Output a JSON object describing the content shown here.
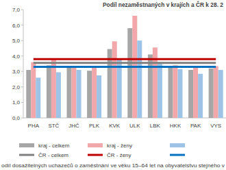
{
  "chart_data": {
    "type": "bar",
    "title": "Podíl nezaměstnaných v krajích a ČR k 28. 2",
    "note": "odíl dosažitelných uchazečů o zaměstnání ve věku 15–64 let na obyvatelstvu stejného v",
    "categories": [
      "PHA",
      "STČ",
      "JHČ",
      "PLK",
      "KVK",
      "ULK",
      "LBK",
      "HKK",
      "PAK",
      "VYS"
    ],
    "series": [
      {
        "name": "kraj - celkem",
        "color": "#a6a6a6",
        "values": [
          3.1,
          3.4,
          3.25,
          3.05,
          4.45,
          5.8,
          4.1,
          3.3,
          3.1,
          3.2
        ]
      },
      {
        "name": "kraj - ženy",
        "color": "#f2a7aa",
        "values": [
          3.6,
          3.85,
          3.35,
          3.35,
          4.95,
          6.6,
          4.55,
          3.4,
          3.35,
          3.35
        ]
      },
      {
        "color": "#9dc3e6",
        "values": [
          2.6,
          2.95,
          3.1,
          2.75,
          3.8,
          5.0,
          3.6,
          3.15,
          2.85,
          3.1
        ]
      },
      {
        "name": "ČR - celkem",
        "type": "line",
        "color": "#7f7f7f",
        "values": [
          3.55,
          3.55,
          3.55,
          3.55,
          3.55,
          3.55,
          3.55,
          3.55,
          3.55,
          3.55
        ]
      },
      {
        "name": "ČR - ženy",
        "type": "line",
        "color": "#c00000",
        "values": [
          3.8,
          3.8,
          3.8,
          3.8,
          3.8,
          3.8,
          3.8,
          3.8,
          3.8,
          3.8
        ]
      },
      {
        "type": "line",
        "color": "#0070c0",
        "values": [
          3.3,
          3.3,
          3.3,
          3.3,
          3.3,
          3.3,
          3.3,
          3.3,
          3.3,
          3.3
        ]
      }
    ],
    "ylim": [
      0,
      7
    ],
    "yticks": [
      {
        "value": 0,
        "label": "0,0"
      },
      {
        "value": 1,
        "label": "1,0"
      },
      {
        "value": 2,
        "label": "2,0"
      },
      {
        "value": 3,
        "label": "3,0"
      },
      {
        "value": 4,
        "label": "4,0"
      },
      {
        "value": 5,
        "label": "5,0"
      },
      {
        "value": 6,
        "label": "6,0"
      },
      {
        "value": 7,
        "label": "7,0"
      }
    ],
    "grid": false,
    "legend": "bottom"
  }
}
